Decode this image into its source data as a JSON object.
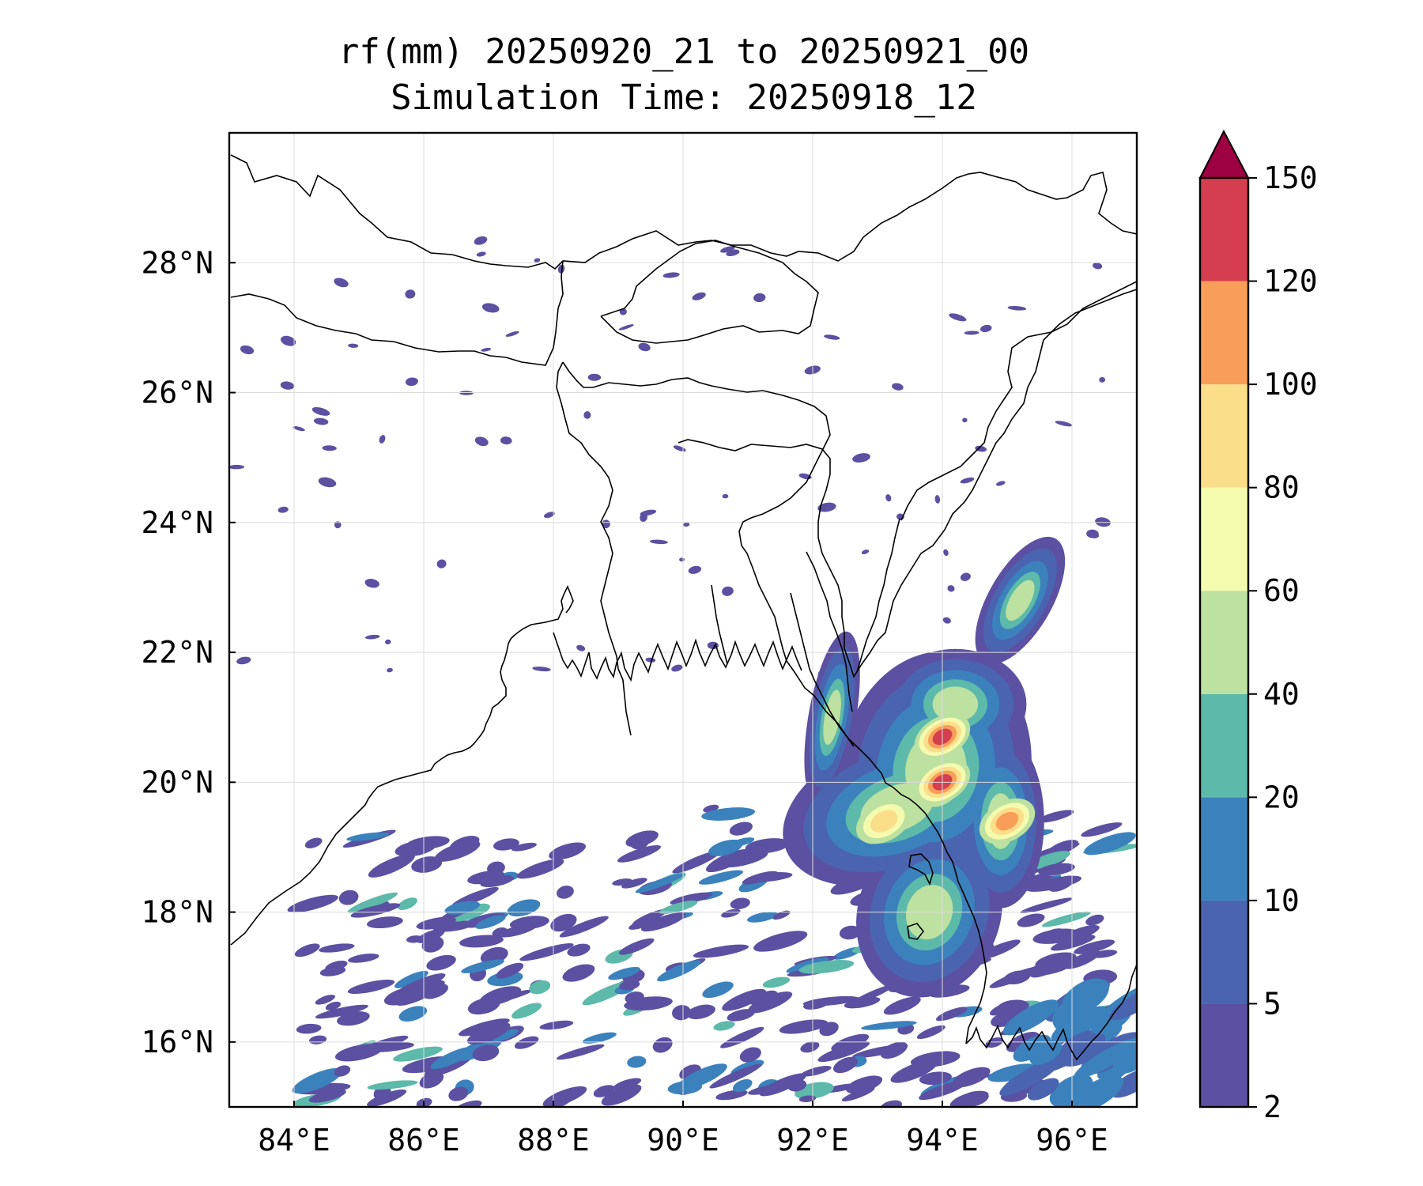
{
  "title": {
    "line1": "rf(mm) 20250920_21 to 20250921_00",
    "line2": "Simulation Time: 20250918_12"
  },
  "map": {
    "lon_range": [
      83.0,
      97.0
    ],
    "lat_range": [
      15.0,
      30.0
    ],
    "x_ticks": [
      "84°E",
      "86°E",
      "88°E",
      "90°E",
      "92°E",
      "94°E",
      "96°E"
    ],
    "x_tick_values": [
      84,
      86,
      88,
      90,
      92,
      94,
      96
    ],
    "y_ticks": [
      "28°N",
      "26°N",
      "24°N",
      "22°N",
      "20°N",
      "18°N",
      "16°N"
    ],
    "y_tick_values": [
      28,
      26,
      24,
      22,
      20,
      18,
      16
    ],
    "grid": true,
    "field": "rainfall accumulation (mm)",
    "max_rain_centers": [
      {
        "lon": 94.0,
        "lat": 20.0,
        "value": 150
      },
      {
        "lon": 94.0,
        "lat": 20.7,
        "value": 140
      },
      {
        "lon": 95.0,
        "lat": 19.4,
        "value": 120
      },
      {
        "lon": 93.1,
        "lat": 19.4,
        "value": 90
      }
    ]
  },
  "colorbar": {
    "levels": [
      "2",
      "5",
      "10",
      "20",
      "40",
      "60",
      "80",
      "100",
      "120",
      "150"
    ],
    "colors": [
      "#5b50a1",
      "#4a64b0",
      "#3b82bd",
      "#5db9aa",
      "#bde1a0",
      "#f5fbae",
      "#fbde8a",
      "#f99e59",
      "#d53e4f",
      "#9e0142"
    ],
    "extend": "max"
  }
}
